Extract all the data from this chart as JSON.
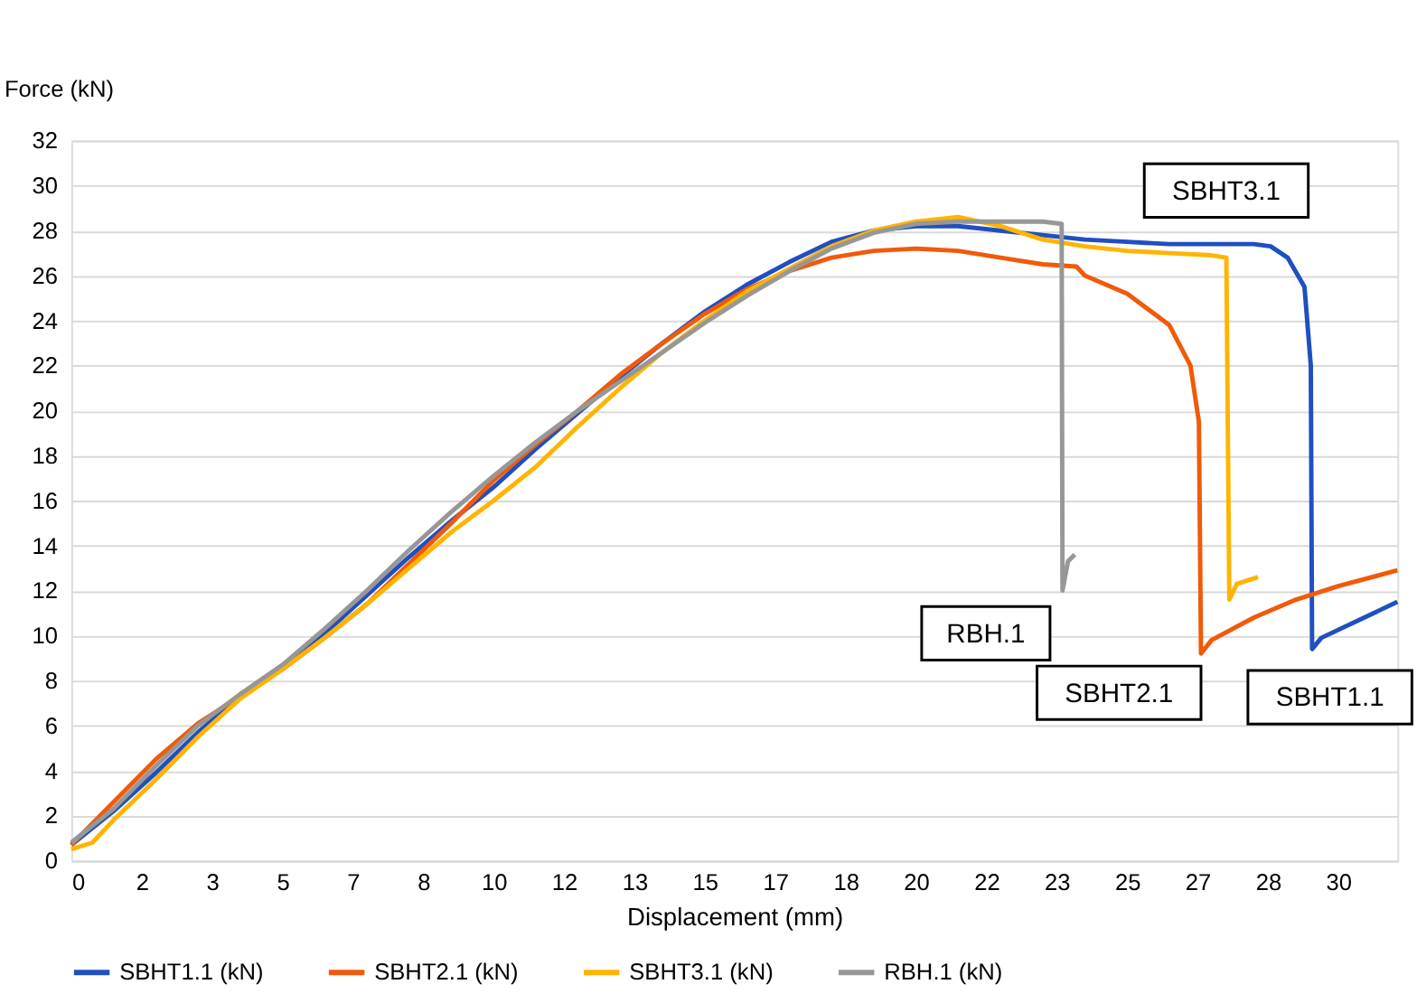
{
  "chart_data": {
    "type": "line",
    "xlabel": "Displacement (mm)",
    "ylabel": "Force (kN)",
    "series": [
      {
        "name": "SBHT1.1 (kN)",
        "color": "#1f4fc1",
        "x": [
          0,
          1,
          2,
          3,
          4,
          5,
          6,
          7,
          8,
          9,
          10,
          11,
          12,
          13,
          14,
          15,
          16,
          17,
          18,
          19,
          20,
          21,
          22,
          23,
          24,
          25,
          26,
          27,
          28,
          28.4,
          28.8,
          29.2,
          29.35,
          29.38,
          29.6,
          30.5,
          31.4
        ],
        "values": [
          0.7,
          2.2,
          3.9,
          5.7,
          7.3,
          8.6,
          10.1,
          11.8,
          13.5,
          15.1,
          16.6,
          18.3,
          19.9,
          21.5,
          23.0,
          24.4,
          25.6,
          26.6,
          27.5,
          28.0,
          28.2,
          28.2,
          28.0,
          27.8,
          27.6,
          27.5,
          27.4,
          27.4,
          27.4,
          27.3,
          26.8,
          25.5,
          22.0,
          9.4,
          9.9,
          10.7,
          11.5
        ]
      },
      {
        "name": "SBHT2.1 (kN)",
        "color": "#f05a0a",
        "x": [
          0,
          1,
          2,
          3,
          4,
          5,
          6,
          7,
          8,
          9,
          10,
          11,
          12,
          13,
          14,
          15,
          16,
          17,
          18,
          19,
          20,
          21,
          22,
          23,
          23.8,
          24,
          25,
          26,
          26.5,
          26.7,
          26.75,
          27,
          28,
          29,
          30,
          31.4
        ],
        "values": [
          0.7,
          2.6,
          4.5,
          6.1,
          7.3,
          8.5,
          9.9,
          11.4,
          13.2,
          15,
          16.9,
          18.5,
          20.0,
          21.6,
          23.0,
          24.3,
          25.4,
          26.2,
          26.8,
          27.1,
          27.2,
          27.1,
          26.8,
          26.5,
          26.4,
          26.0,
          25.2,
          23.8,
          22.0,
          19.5,
          9.2,
          9.8,
          10.8,
          11.6,
          12.2,
          12.9
        ]
      },
      {
        "name": "SBHT3.1 (kN)",
        "color": "#ffb400",
        "x": [
          0,
          0.5,
          1,
          2,
          3,
          4,
          5,
          6,
          7,
          8,
          9,
          10,
          11,
          12,
          13,
          14,
          15,
          16,
          17,
          18,
          19,
          20,
          21,
          22,
          23,
          24,
          25,
          26,
          27,
          27.35,
          27.42,
          27.6,
          28.1
        ],
        "values": [
          0.5,
          0.8,
          1.8,
          3.6,
          5.5,
          7.2,
          8.5,
          9.9,
          11.4,
          13.0,
          14.6,
          16.0,
          17.5,
          19.3,
          21.0,
          22.6,
          24.0,
          25.3,
          26.3,
          27.3,
          28.0,
          28.4,
          28.6,
          28.2,
          27.6,
          27.3,
          27.1,
          27.0,
          26.9,
          26.8,
          11.6,
          12.3,
          12.6
        ]
      },
      {
        "name": "RBH.1 (kN)",
        "color": "#979797",
        "x": [
          0,
          1,
          2,
          3,
          4,
          5,
          6,
          7,
          8,
          9,
          10,
          11,
          12,
          13,
          14,
          15,
          16,
          17,
          18,
          19,
          20,
          21,
          22,
          23,
          23.45,
          23.47,
          23.6,
          23.76
        ],
        "values": [
          0.8,
          2.3,
          4.2,
          6.0,
          7.4,
          8.7,
          10.3,
          12.0,
          13.8,
          15.5,
          17.1,
          18.6,
          20.0,
          21.3,
          22.6,
          23.9,
          25.1,
          26.2,
          27.2,
          27.9,
          28.3,
          28.4,
          28.4,
          28.4,
          28.3,
          12.0,
          13.3,
          13.6
        ]
      }
    ],
    "xlim": [
      0,
      31.4
    ],
    "xticks": [
      0,
      {
        "value": 1.6667,
        "label": "2"
      },
      {
        "value": 3.3333,
        "label": "3"
      },
      5,
      {
        "value": 6.6667,
        "label": "7"
      },
      {
        "value": 8.3333,
        "label": "8"
      },
      10,
      {
        "value": 11.6667,
        "label": "12"
      },
      {
        "value": 13.3333,
        "label": "13"
      },
      15,
      {
        "value": 16.6667,
        "label": "17"
      },
      {
        "value": 18.3333,
        "label": "18"
      },
      20,
      {
        "value": 21.6667,
        "label": "22"
      },
      {
        "value": 23.3333,
        "label": "23"
      },
      25,
      {
        "value": 26.6667,
        "label": "27"
      },
      {
        "value": 28.3333,
        "label": "28"
      },
      30
    ],
    "ylim": [
      0,
      32
    ],
    "yticks": [
      0,
      2,
      4,
      6,
      8,
      10,
      12,
      14,
      16,
      18,
      20,
      22,
      24,
      26,
      28,
      30,
      32
    ],
    "grid": "y",
    "legend": "bottom",
    "marker": "none",
    "line_style": "solid",
    "annotations": [
      "SBHT3.1",
      {
        "text": "RBH.1",
        "x": 23.47,
        "y": 12.0
      },
      {
        "text": "SBHT2.1",
        "x": 26.75,
        "y": 9.2
      },
      {
        "text": "SBHT1.1",
        "x": 29.38,
        "y": 9.4
      }
    ]
  }
}
